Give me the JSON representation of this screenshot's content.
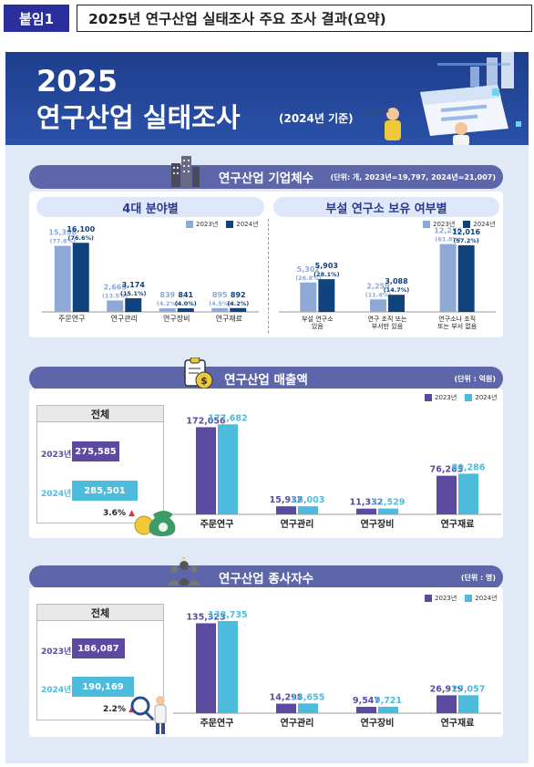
{
  "header": {
    "tag": "붙임1",
    "title": "2025년 연구산업 실태조사 주요 조사 결과(요약)"
  },
  "banner": {
    "year": "2025",
    "title": "연구산업 실태조사",
    "subtitle": "(2024년 기준)"
  },
  "colors": {
    "y2023_light": "#8fa9d6",
    "y2024_dark": "#10427c",
    "y2023_purple": "#5b4aa0",
    "y2024_cyan": "#4dbcdc",
    "section_header": "#5c66a8",
    "increase_arrow": "#e23030"
  },
  "section1": {
    "title": "연구산업 기업체수",
    "unit": "(단위: 개, 2023년=19,797, 2024년=21,007)",
    "left_title": "4대 분야별",
    "right_title": "부설 연구소 보유 여부별",
    "legend": [
      "2023년",
      "2024년"
    ]
  },
  "section2": {
    "title": "연구산업 매출액",
    "unit": "(단위 : 억원)",
    "legend": [
      "2023년",
      "2024년"
    ],
    "total_title": "전체",
    "total_rows": [
      {
        "label": "2023년",
        "value": "275,585"
      },
      {
        "label": "2024년",
        "value": "285,501"
      }
    ],
    "increase": "3.6%"
  },
  "section3": {
    "title": "연구산업 종사자수",
    "unit": "(단위 : 명)",
    "legend": [
      "2023년",
      "2024년"
    ],
    "total_title": "전체",
    "total_rows": [
      {
        "label": "2023년",
        "value": "186,087"
      },
      {
        "label": "2024년",
        "value": "190,169"
      }
    ],
    "increase": "2.2%"
  },
  "chart_data": [
    {
      "type": "bar",
      "title": "4대 분야별",
      "categories": [
        "주문연구",
        "연구관리",
        "연구장비",
        "연구재료"
      ],
      "series": [
        {
          "name": "2023년",
          "values": [
            15398,
            2665,
            839,
            895
          ],
          "labels": [
            "15,398",
            "2,665",
            "839",
            "895"
          ],
          "shares": [
            "(77.8%)",
            "(13.5%)",
            "(4.2%)",
            "(4.5%)"
          ]
        },
        {
          "name": "2024년",
          "values": [
            16100,
            3174,
            841,
            892
          ],
          "labels": [
            "16,100",
            "3,174",
            "841",
            "892"
          ],
          "shares": [
            "(76.6%)",
            "(15.1%)",
            "(4.0%)",
            "(4.2%)"
          ]
        }
      ]
    },
    {
      "type": "bar",
      "title": "부설 연구소 보유 여부별",
      "categories": [
        [
          "부설 연구소",
          "있음"
        ],
        [
          "연구 조직 또는",
          "부서만 있음"
        ],
        [
          "연구소나 조직",
          "또는 부서 없음"
        ]
      ],
      "series": [
        {
          "name": "2023년",
          "values": [
            5302,
            2259,
            12236
          ],
          "labels": [
            "5,302",
            "2,259",
            "12,236"
          ],
          "shares": [
            "(26.8%)",
            "(11.4%)",
            "(61.8%)"
          ]
        },
        {
          "name": "2024년",
          "values": [
            5903,
            3088,
            12016
          ],
          "labels": [
            "5,903",
            "3,088",
            "12,016"
          ],
          "shares": [
            "(28.1%)",
            "(14.7%)",
            "(57.2%)"
          ]
        }
      ]
    },
    {
      "type": "bar",
      "title": "연구산업 매출액",
      "categories": [
        "주문연구",
        "연구관리",
        "연구장비",
        "연구재료"
      ],
      "series": [
        {
          "name": "2023년",
          "values": [
            172056,
            15932,
            11332,
            76265
          ],
          "labels": [
            "172,056",
            "15,932",
            "11,332",
            "76,265"
          ]
        },
        {
          "name": "2024년",
          "values": [
            177682,
            16003,
            11529,
            80286
          ],
          "labels": [
            "177,682",
            "16,003",
            "11,529",
            "80,286"
          ]
        }
      ]
    },
    {
      "type": "bar",
      "title": "연구산업 종사자수",
      "categories": [
        "주문연구",
        "연구관리",
        "연구장비",
        "연구재료"
      ],
      "series": [
        {
          "name": "2023년",
          "values": [
            135323,
            14298,
            9547,
            26919
          ],
          "labels": [
            "135,323",
            "14,298",
            "9,547",
            "26,919"
          ]
        },
        {
          "name": "2024년",
          "values": [
            138735,
            14655,
            9721,
            27057
          ],
          "labels": [
            "138,735",
            "14,655",
            "9,721",
            "27,057"
          ]
        }
      ]
    }
  ]
}
